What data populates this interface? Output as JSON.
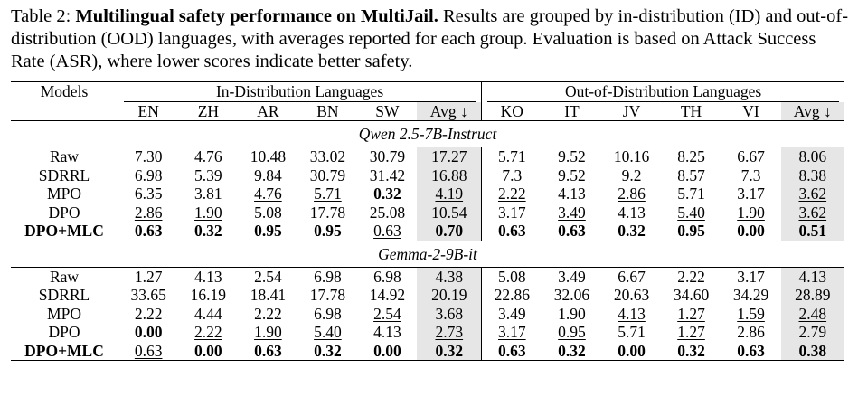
{
  "caption": {
    "label": "Table 2:",
    "title": "Multilingual safety performance on MultiJail.",
    "text": "Results are grouped by in-distribution (ID) and out-of-distribution (OOD) languages, with averages reported for each group. Evaluation is based on Attack Success Rate (ASR), where lower scores indicate better safety."
  },
  "header": {
    "models": "Models",
    "id_group": "In-Distribution Languages",
    "ood_group": "Out-of-Distribution Languages",
    "id_cols": [
      "EN",
      "ZH",
      "AR",
      "BN",
      "SW",
      "Avg ↓"
    ],
    "ood_cols": [
      "KO",
      "IT",
      "JV",
      "TH",
      "VI",
      "Avg ↓"
    ]
  },
  "sections": [
    {
      "title": "Qwen 2.5-7B-Instruct",
      "rows": [
        {
          "model": "Raw",
          "bold_model": false,
          "cells": [
            {
              "v": "7.30"
            },
            {
              "v": "4.76"
            },
            {
              "v": "10.48"
            },
            {
              "v": "33.02"
            },
            {
              "v": "30.79"
            },
            {
              "v": "17.27"
            },
            {
              "v": "5.71"
            },
            {
              "v": "9.52"
            },
            {
              "v": "10.16"
            },
            {
              "v": "8.25"
            },
            {
              "v": "6.67"
            },
            {
              "v": "8.06"
            }
          ]
        },
        {
          "model": "SDRRL",
          "bold_model": false,
          "cells": [
            {
              "v": "6.98"
            },
            {
              "v": "5.39"
            },
            {
              "v": "9.84"
            },
            {
              "v": "30.79"
            },
            {
              "v": "31.42"
            },
            {
              "v": "16.88"
            },
            {
              "v": "7.3"
            },
            {
              "v": "9.52"
            },
            {
              "v": "9.2"
            },
            {
              "v": "8.57"
            },
            {
              "v": "7.3"
            },
            {
              "v": "8.38"
            }
          ]
        },
        {
          "model": "MPO",
          "bold_model": false,
          "cells": [
            {
              "v": "6.35"
            },
            {
              "v": "3.81"
            },
            {
              "v": "4.76",
              "u": true
            },
            {
              "v": "5.71",
              "u": true
            },
            {
              "v": "0.32",
              "b": true
            },
            {
              "v": "4.19",
              "u": true
            },
            {
              "v": "2.22",
              "u": true
            },
            {
              "v": "4.13"
            },
            {
              "v": "2.86",
              "u": true
            },
            {
              "v": "5.71"
            },
            {
              "v": "3.17"
            },
            {
              "v": "3.62",
              "u": true
            }
          ]
        },
        {
          "model": "DPO",
          "bold_model": false,
          "cells": [
            {
              "v": "2.86",
              "u": true
            },
            {
              "v": "1.90",
              "u": true
            },
            {
              "v": "5.08"
            },
            {
              "v": "17.78"
            },
            {
              "v": "25.08"
            },
            {
              "v": "10.54"
            },
            {
              "v": "3.17"
            },
            {
              "v": "3.49",
              "u": true
            },
            {
              "v": "4.13"
            },
            {
              "v": "5.40",
              "u": true
            },
            {
              "v": "1.90",
              "u": true
            },
            {
              "v": "3.62",
              "u": true
            }
          ]
        },
        {
          "model": "DPO+MLC",
          "bold_model": true,
          "cells": [
            {
              "v": "0.63",
              "b": true
            },
            {
              "v": "0.32",
              "b": true
            },
            {
              "v": "0.95",
              "b": true
            },
            {
              "v": "0.95",
              "b": true
            },
            {
              "v": "0.63",
              "u": true
            },
            {
              "v": "0.70",
              "b": true
            },
            {
              "v": "0.63",
              "b": true
            },
            {
              "v": "0.63",
              "b": true
            },
            {
              "v": "0.32",
              "b": true
            },
            {
              "v": "0.95",
              "b": true
            },
            {
              "v": "0.00",
              "b": true
            },
            {
              "v": "0.51",
              "b": true
            }
          ]
        }
      ]
    },
    {
      "title": "Gemma-2-9B-it",
      "rows": [
        {
          "model": "Raw",
          "bold_model": false,
          "cells": [
            {
              "v": "1.27"
            },
            {
              "v": "4.13"
            },
            {
              "v": "2.54"
            },
            {
              "v": "6.98"
            },
            {
              "v": "6.98"
            },
            {
              "v": "4.38"
            },
            {
              "v": "5.08"
            },
            {
              "v": "3.49"
            },
            {
              "v": "6.67"
            },
            {
              "v": "2.22"
            },
            {
              "v": "3.17"
            },
            {
              "v": "4.13"
            }
          ]
        },
        {
          "model": "SDRRL",
          "bold_model": false,
          "cells": [
            {
              "v": "33.65"
            },
            {
              "v": "16.19"
            },
            {
              "v": "18.41"
            },
            {
              "v": "17.78"
            },
            {
              "v": "14.92"
            },
            {
              "v": "20.19"
            },
            {
              "v": "22.86"
            },
            {
              "v": "32.06"
            },
            {
              "v": "20.63"
            },
            {
              "v": "34.60"
            },
            {
              "v": "34.29"
            },
            {
              "v": "28.89"
            }
          ]
        },
        {
          "model": "MPO",
          "bold_model": false,
          "cells": [
            {
              "v": "2.22"
            },
            {
              "v": "4.44"
            },
            {
              "v": "2.22"
            },
            {
              "v": "6.98"
            },
            {
              "v": "2.54",
              "u": true
            },
            {
              "v": "3.68"
            },
            {
              "v": "3.49"
            },
            {
              "v": "1.90"
            },
            {
              "v": "4.13",
              "u": true
            },
            {
              "v": "1.27",
              "u": true
            },
            {
              "v": "1.59",
              "u": true
            },
            {
              "v": "2.48",
              "u": true
            }
          ]
        },
        {
          "model": "DPO",
          "bold_model": false,
          "cells": [
            {
              "v": "0.00",
              "b": true
            },
            {
              "v": "2.22",
              "u": true
            },
            {
              "v": "1.90",
              "u": true
            },
            {
              "v": "5.40",
              "u": true
            },
            {
              "v": "4.13"
            },
            {
              "v": "2.73",
              "u": true
            },
            {
              "v": "3.17",
              "u": true
            },
            {
              "v": "0.95",
              "u": true
            },
            {
              "v": "5.71"
            },
            {
              "v": "1.27",
              "u": true
            },
            {
              "v": "2.86"
            },
            {
              "v": "2.79"
            }
          ]
        },
        {
          "model": "DPO+MLC",
          "bold_model": true,
          "cells": [
            {
              "v": "0.63",
              "u": true
            },
            {
              "v": "0.00",
              "b": true
            },
            {
              "v": "0.63",
              "b": true
            },
            {
              "v": "0.32",
              "b": true
            },
            {
              "v": "0.00",
              "b": true
            },
            {
              "v": "0.32",
              "b": true
            },
            {
              "v": "0.63",
              "b": true
            },
            {
              "v": "0.32",
              "b": true
            },
            {
              "v": "0.00",
              "b": true
            },
            {
              "v": "0.32",
              "b": true
            },
            {
              "v": "0.63",
              "b": true
            },
            {
              "v": "0.38",
              "b": true
            }
          ]
        }
      ]
    }
  ]
}
